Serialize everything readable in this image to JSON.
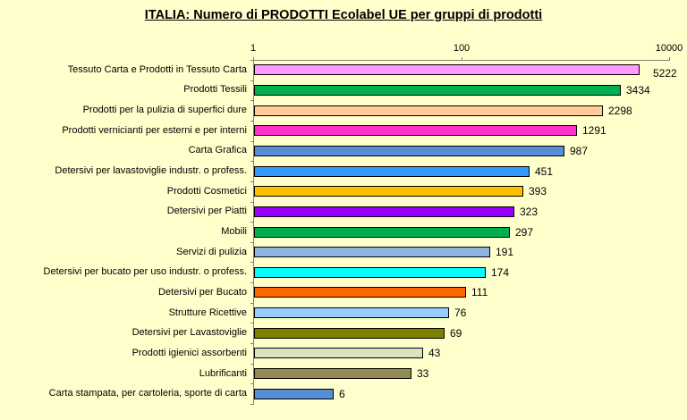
{
  "chart_data": {
    "type": "bar",
    "orientation": "horizontal",
    "title": "ITALIA: Numero di PRODOTTI  Ecolabel UE per gruppi di prodotti",
    "xlabel": "",
    "ylabel": "",
    "xscale": "log",
    "xlim": [
      1,
      10000
    ],
    "xticks": [
      "1",
      "100",
      "10000"
    ],
    "grid": false,
    "legend": null,
    "categories": [
      "Tessuto Carta e Prodotti in Tessuto Carta",
      "Prodotti Tessili",
      "Prodotti per la pulizia di superfici dure",
      "Prodotti vernicianti per esterni e per interni",
      "Carta Grafica",
      "Detersivi per lavastoviglie industr. o profess.",
      "Prodotti Cosmetici",
      "Detersivi per Piatti",
      "Mobili",
      "Servizi di pulizia",
      "Detersivi per bucato per uso industr. o profess.",
      "Detersivi per Bucato",
      "Strutture Ricettive",
      "Detersivi per Lavastoviglie",
      "Prodotti igienici assorbenti",
      "Lubrificanti",
      "Carta stampata, per cartoleria, sporte di carta"
    ],
    "values": [
      5222,
      3434,
      2298,
      1291,
      987,
      451,
      393,
      323,
      297,
      191,
      174,
      111,
      76,
      69,
      43,
      33,
      6
    ],
    "colors": [
      "#FF99FF",
      "#00B050",
      "#FFCC99",
      "#FF33CC",
      "#558ED5",
      "#3399FF",
      "#FFC000",
      "#9900FF",
      "#00B050",
      "#8DB4E2",
      "#00FFFF",
      "#FF6600",
      "#99CCFF",
      "#808000",
      "#D7E4BD",
      "#948A54",
      "#558ED5"
    ]
  },
  "style": {
    "background": "#FFFFCC",
    "axis_color": "#808080"
  }
}
